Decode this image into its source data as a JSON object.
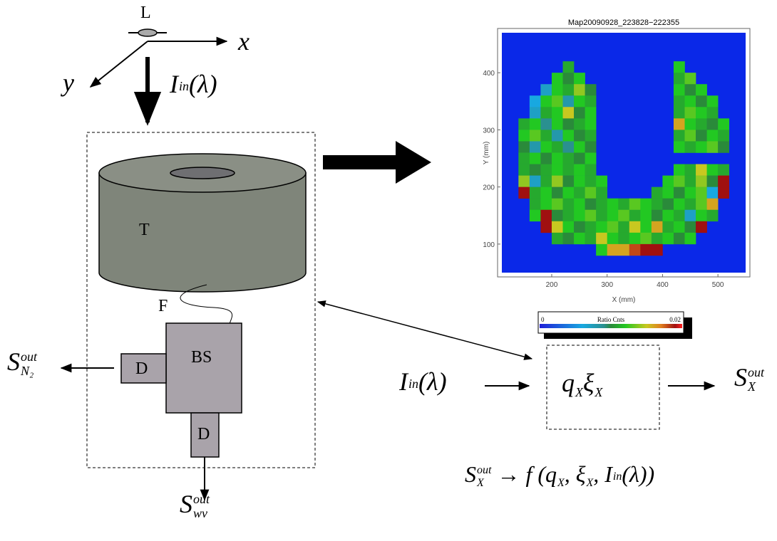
{
  "diagram": {
    "lens": "L",
    "axis_x": "x",
    "axis_y": "y",
    "input_top": [
      {
        "text": "I",
        "sup": "in"
      },
      {
        "text": "(λ)"
      }
    ],
    "turbine_label": "T",
    "fiber_label": "F",
    "splitter_label": "BS",
    "detector_left": "D",
    "detector_bottom": "D",
    "output_n2": [
      {
        "text": "S",
        "sup": "out",
        "sub": "N₂"
      }
    ],
    "output_wv": [
      {
        "text": "S",
        "sup": "out",
        "sub": "wv"
      }
    ],
    "input_right": [
      {
        "text": "I",
        "sup": "in"
      },
      {
        "text": "(λ)"
      }
    ],
    "transfer": [
      {
        "text": "q",
        "sub": "X"
      },
      {
        "text": "ξ",
        "sub": "X"
      }
    ],
    "output_x": [
      {
        "text": "S",
        "sup": "out",
        "sub": "X"
      }
    ],
    "relation": [
      {
        "text": "S",
        "sup": "out",
        "sub": "X"
      },
      {
        "text": " → f ("
      },
      {
        "text": "q",
        "sub": "X"
      },
      {
        "text": ", "
      },
      {
        "text": "ξ",
        "sub": "X"
      },
      {
        "text": ", "
      },
      {
        "text": "I",
        "sup": "in"
      },
      {
        "text": "(λ))"
      }
    ]
  },
  "heatmap": {
    "title": "Map20090928_223828−222355",
    "xlabel": "X (mm)",
    "ylabel": "Y (mm)",
    "xlim": [
      110,
      550
    ],
    "ylim": [
      50,
      470
    ],
    "xticks": [
      200,
      300,
      400,
      500
    ],
    "yticks": [
      100,
      200,
      300,
      400
    ],
    "x": [
      140,
      160,
      180,
      200,
      220,
      240,
      260,
      280,
      300,
      320,
      340,
      360,
      380,
      400,
      420,
      440,
      460,
      480,
      500,
      520
    ],
    "y": [
      400,
      380,
      360,
      340,
      320,
      300,
      280,
      260,
      240,
      220,
      200,
      180,
      160,
      140,
      120,
      100,
      80
    ],
    "values": [
      [
        null,
        null,
        null,
        null,
        0.011,
        null,
        null,
        null,
        null,
        null,
        null,
        null,
        null,
        null,
        0.012,
        null,
        null,
        null,
        null,
        null
      ],
      [
        null,
        null,
        null,
        0.012,
        0.01,
        0.012,
        null,
        null,
        null,
        null,
        null,
        null,
        null,
        null,
        0.011,
        0.013,
        null,
        null,
        null,
        null
      ],
      [
        null,
        null,
        0.007,
        0.012,
        0.011,
        0.014,
        0.01,
        null,
        null,
        null,
        null,
        null,
        null,
        null,
        0.012,
        0.01,
        0.012,
        null,
        null,
        null
      ],
      [
        null,
        0.006,
        0.012,
        0.013,
        0.008,
        0.012,
        0.011,
        null,
        null,
        null,
        null,
        null,
        null,
        null,
        0.011,
        0.012,
        0.01,
        0.012,
        null,
        null
      ],
      [
        null,
        0.007,
        0.011,
        0.012,
        0.015,
        0.01,
        0.012,
        null,
        null,
        null,
        null,
        null,
        null,
        null,
        0.011,
        0.013,
        0.012,
        0.011,
        null,
        null
      ],
      [
        0.011,
        0.012,
        0.009,
        0.012,
        0.01,
        0.011,
        0.012,
        null,
        null,
        null,
        null,
        null,
        null,
        null,
        0.016,
        0.012,
        0.011,
        0.01,
        0.012,
        null
      ],
      [
        0.012,
        0.013,
        0.011,
        0.008,
        0.012,
        0.01,
        0.011,
        null,
        null,
        null,
        null,
        null,
        null,
        null,
        0.011,
        0.013,
        0.01,
        0.012,
        0.011,
        null
      ],
      [
        0.01,
        0.008,
        0.012,
        0.011,
        0.009,
        0.012,
        0.01,
        null,
        null,
        null,
        null,
        null,
        null,
        null,
        0.012,
        0.011,
        0.012,
        0.013,
        0.01,
        null
      ],
      [
        0.011,
        0.012,
        0.01,
        0.012,
        0.011,
        0.01,
        0.012,
        null,
        null,
        null,
        null,
        null,
        null,
        null,
        null,
        null,
        null,
        null,
        null,
        null
      ],
      [
        0.011,
        0.01,
        0.011,
        0.012,
        0.011,
        0.012,
        0.011,
        null,
        null,
        null,
        null,
        null,
        null,
        null,
        0.012,
        0.011,
        0.015,
        0.012,
        0.011,
        null
      ],
      [
        0.014,
        0.007,
        0.011,
        0.014,
        0.01,
        0.012,
        0.011,
        0.012,
        null,
        null,
        null,
        null,
        null,
        0.012,
        0.013,
        0.011,
        0.014,
        0.01,
        0.019,
        null
      ],
      [
        0.019,
        0.011,
        0.012,
        0.01,
        0.012,
        0.011,
        0.013,
        0.011,
        null,
        null,
        null,
        null,
        0.011,
        0.012,
        0.01,
        0.012,
        0.013,
        0.006,
        0.019,
        null
      ],
      [
        null,
        0.011,
        0.012,
        0.013,
        0.011,
        0.012,
        0.01,
        0.011,
        0.012,
        0.011,
        0.013,
        0.012,
        0.011,
        0.01,
        0.012,
        0.011,
        0.013,
        0.016,
        null,
        null
      ],
      [
        null,
        0.012,
        0.019,
        0.01,
        0.011,
        0.012,
        0.013,
        0.011,
        0.012,
        0.013,
        0.011,
        0.012,
        0.01,
        0.012,
        0.011,
        0.007,
        0.012,
        0.011,
        null,
        null
      ],
      [
        null,
        null,
        0.019,
        0.015,
        0.012,
        0.01,
        0.011,
        0.012,
        0.013,
        0.011,
        0.015,
        0.012,
        0.016,
        0.011,
        0.012,
        0.01,
        0.019,
        null,
        null,
        null
      ],
      [
        null,
        null,
        null,
        0.011,
        0.01,
        0.012,
        0.011,
        0.015,
        0.012,
        0.011,
        0.012,
        0.013,
        0.011,
        0.012,
        0.01,
        0.012,
        null,
        null,
        null,
        null
      ],
      [
        null,
        null,
        null,
        null,
        null,
        null,
        null,
        0.012,
        0.016,
        0.016,
        0.018,
        0.019,
        0.019,
        null,
        null,
        null,
        null,
        null,
        null,
        null
      ]
    ],
    "colorbar_title": "Ratio Cnts",
    "colorbar_ticks": [
      0,
      0.02
    ]
  }
}
